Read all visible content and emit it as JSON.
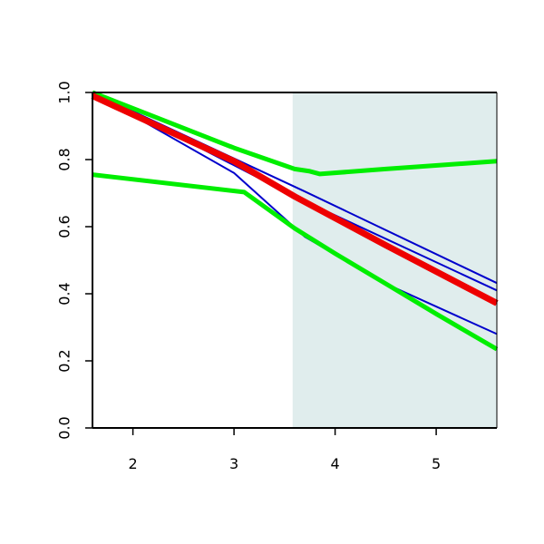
{
  "chart_data": {
    "type": "line",
    "title": "",
    "xlabel": "",
    "ylabel": "",
    "xlim": [
      1.6,
      5.6
    ],
    "ylim": [
      0.0,
      1.0
    ],
    "x_ticks": [
      2,
      3,
      4,
      5
    ],
    "x_tick_labels": [
      "2",
      "3",
      "4",
      "5"
    ],
    "y_ticks": [
      0.0,
      0.2,
      0.4,
      0.6,
      0.8,
      1.0
    ],
    "y_tick_labels": [
      "0.0",
      "0.2",
      "0.4",
      "0.6",
      "0.8",
      "1.0"
    ],
    "grid": false,
    "legend": "none",
    "shaded_region": {
      "x_start": 3.58,
      "x_end": 5.6,
      "color": "#e0eded"
    },
    "series": [
      {
        "color": "#0000cc",
        "line_width": 2,
        "x": [
          1.6,
          3.7,
          5.6
        ],
        "y": [
          1.0,
          0.705,
          0.432
        ]
      },
      {
        "color": "#0000cc",
        "line_width": 2,
        "x": [
          1.6,
          3.6,
          5.6
        ],
        "y": [
          1.0,
          0.69,
          0.41
        ]
      },
      {
        "color": "#0000cc",
        "line_width": 2,
        "x": [
          1.6,
          3.0,
          3.7,
          4.5,
          5.6
        ],
        "y": [
          1.0,
          0.76,
          0.57,
          0.43,
          0.28
        ]
      },
      {
        "color": "#00ee00",
        "line_width": 5,
        "x": [
          1.6,
          3.0,
          3.6,
          3.75,
          3.85,
          4.5,
          5.6
        ],
        "y": [
          1.0,
          0.835,
          0.772,
          0.765,
          0.757,
          0.772,
          0.795
        ]
      },
      {
        "color": "#00ee00",
        "line_width": 5,
        "x": [
          1.6,
          3.1,
          3.6,
          4.0,
          4.5,
          5.0,
          5.6
        ],
        "y": [
          0.755,
          0.703,
          0.595,
          0.52,
          0.43,
          0.34,
          0.235
        ]
      },
      {
        "color": "#ee0000",
        "line_width": 7,
        "x": [
          1.6,
          3.0,
          3.6,
          4.5,
          5.6
        ],
        "y": [
          0.99,
          0.795,
          0.69,
          0.545,
          0.372
        ]
      }
    ]
  }
}
